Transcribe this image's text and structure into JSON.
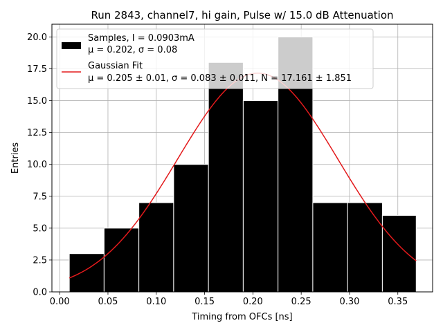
{
  "chart_data": {
    "type": "bar",
    "title": "Run 2843, channel7, hi gain, Pulse w/ 15.0 dB Attenuation",
    "xlabel": "Timing from OFCs [ns]",
    "ylabel": "Entries",
    "xlim": [
      -0.008,
      0.386
    ],
    "ylim": [
      0,
      21
    ],
    "xticks": [
      "0.00",
      "0.05",
      "0.10",
      "0.15",
      "0.20",
      "0.25",
      "0.30",
      "0.35"
    ],
    "yticks": [
      "0.0",
      "2.5",
      "5.0",
      "7.5",
      "10.0",
      "12.5",
      "15.0",
      "17.5",
      "20.0"
    ],
    "grid": true,
    "legend_position": "top-left",
    "histogram": {
      "bin_edges": [
        0.01,
        0.046,
        0.082,
        0.118,
        0.154,
        0.19,
        0.226,
        0.262,
        0.298,
        0.334,
        0.369
      ],
      "counts": [
        3,
        5,
        7,
        10,
        18,
        15,
        20,
        7,
        7,
        6
      ],
      "color": "#000000"
    },
    "fit": {
      "mu": 0.205,
      "sigma": 0.083,
      "N": 17.161,
      "x_range": [
        0.01,
        0.369
      ],
      "color": "#e31a1c"
    },
    "legend": [
      {
        "line1": "Samples, I = 0.0903mA",
        "line2": "μ = 0.202, σ = 0.08"
      },
      {
        "line1": "Gaussian Fit",
        "line2": "μ = 0.205 ± 0.01, σ = 0.083 ± 0.011, N = 17.161 ± 1.851"
      }
    ]
  }
}
